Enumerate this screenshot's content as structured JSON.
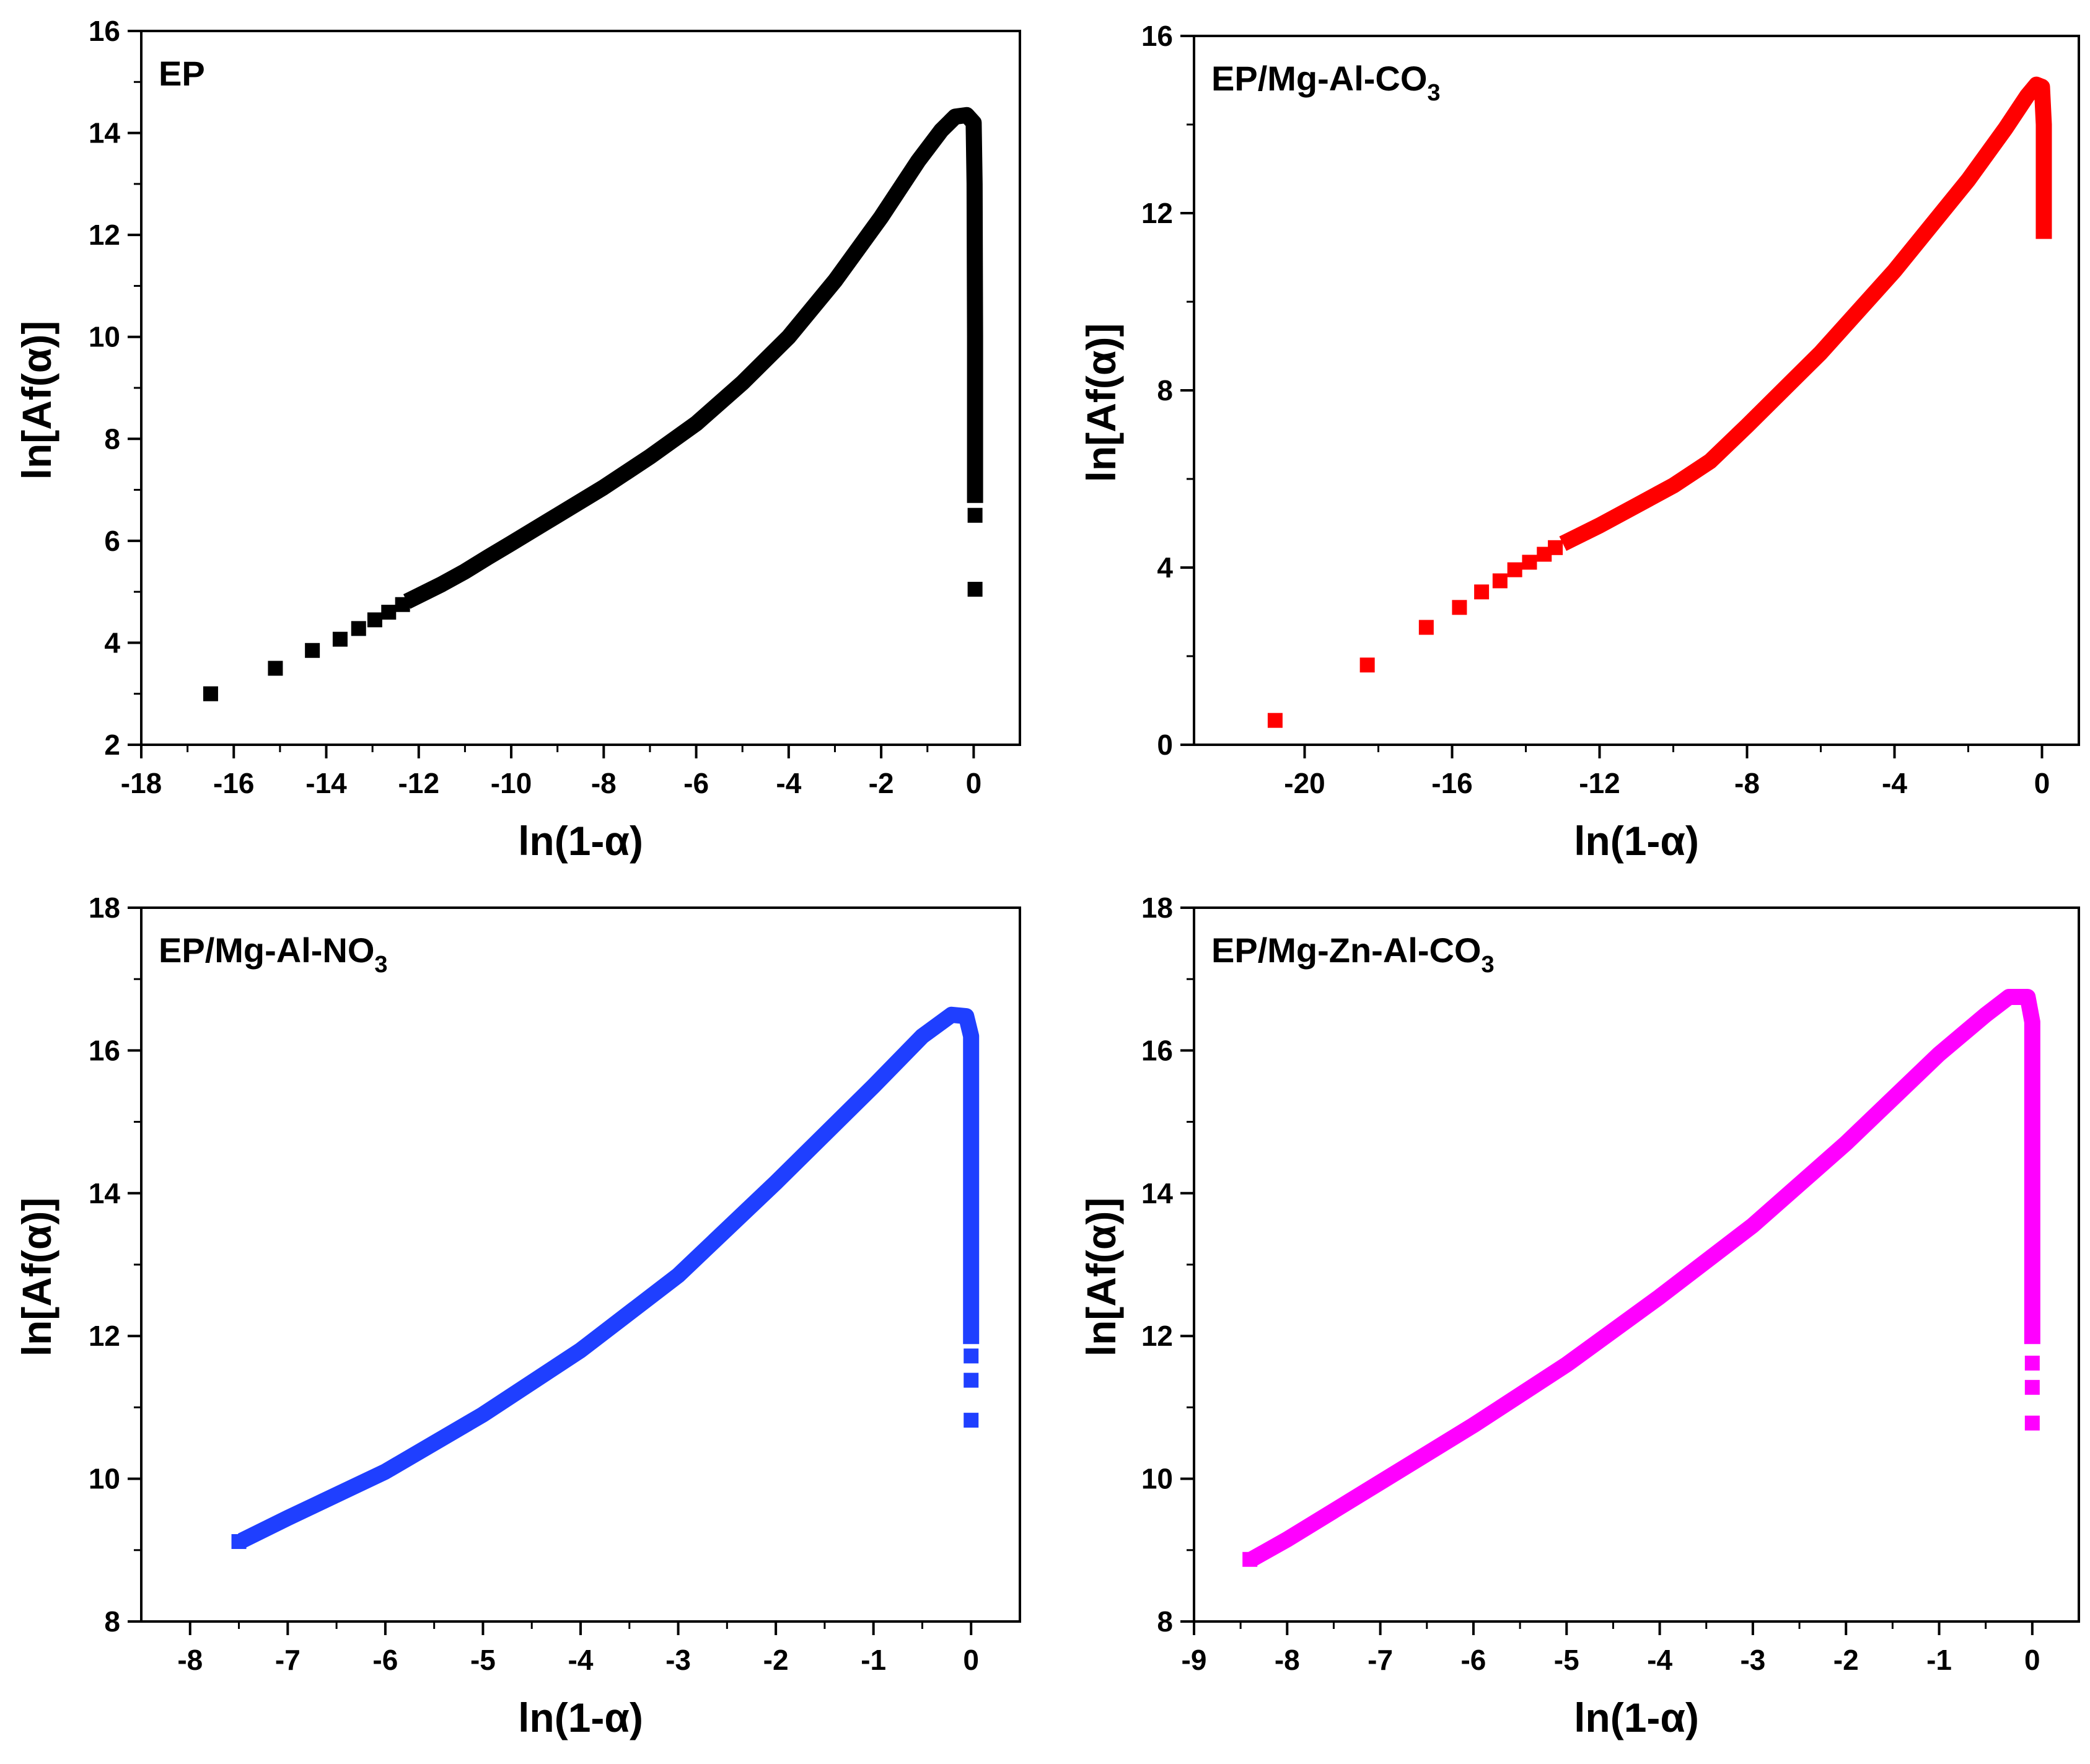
{
  "chart_data": [
    {
      "type": "scatter",
      "title": "EP",
      "title_sub": "",
      "xlabel": "ln(1-α)",
      "ylabel": "ln[Af(α)]",
      "xlim": [
        -18,
        1
      ],
      "ylim": [
        2,
        16
      ],
      "xticks": [
        -18,
        -16,
        -14,
        -12,
        -10,
        -8,
        -6,
        -4,
        -2,
        0
      ],
      "yticks": [
        2,
        4,
        6,
        8,
        10,
        12,
        14,
        16
      ],
      "color": "#000000",
      "discrete": [
        [
          -16.5,
          3.0
        ],
        [
          -15.1,
          3.5
        ],
        [
          -14.3,
          3.85
        ],
        [
          -13.7,
          4.07
        ],
        [
          -13.3,
          4.28
        ],
        [
          -12.95,
          4.45
        ],
        [
          -12.65,
          4.6
        ],
        [
          -12.35,
          4.75
        ]
      ],
      "curve": [
        [
          -12.1,
          4.88
        ],
        [
          -11.5,
          5.15
        ],
        [
          -11.0,
          5.4
        ],
        [
          -10.5,
          5.68
        ],
        [
          -10.0,
          5.95
        ],
        [
          -9.0,
          6.5
        ],
        [
          -8.0,
          7.05
        ],
        [
          -7.0,
          7.65
        ],
        [
          -6.0,
          8.3
        ],
        [
          -5.0,
          9.1
        ],
        [
          -4.0,
          10.0
        ],
        [
          -3.0,
          11.1
        ],
        [
          -2.0,
          12.35
        ],
        [
          -1.2,
          13.45
        ],
        [
          -0.7,
          14.05
        ],
        [
          -0.4,
          14.32
        ],
        [
          -0.15,
          14.35
        ],
        [
          0.0,
          14.2
        ],
        [
          0.02,
          13.0
        ],
        [
          0.03,
          10.0
        ],
        [
          0.03,
          6.9
        ]
      ],
      "tail": [
        [
          0.03,
          6.5
        ],
        [
          0.03,
          5.05
        ]
      ]
    },
    {
      "type": "scatter",
      "title": "EP/Mg-Al-CO",
      "title_sub": "3",
      "xlabel": "ln(1-α)",
      "ylabel": "ln[Af(α)]",
      "xlim": [
        -23,
        1
      ],
      "ylim": [
        0,
        16
      ],
      "xticks": [
        -20,
        -16,
        -12,
        -8,
        -4,
        0
      ],
      "yticks": [
        0,
        4,
        8,
        12,
        16
      ],
      "color": "#ff0000",
      "discrete": [
        [
          -20.8,
          0.55
        ],
        [
          -18.3,
          1.8
        ],
        [
          -16.7,
          2.65
        ],
        [
          -15.8,
          3.1
        ],
        [
          -15.2,
          3.45
        ],
        [
          -14.7,
          3.7
        ],
        [
          -14.3,
          3.95
        ],
        [
          -13.9,
          4.12
        ],
        [
          -13.5,
          4.3
        ],
        [
          -13.2,
          4.45
        ]
      ],
      "curve": [
        [
          -12.8,
          4.62
        ],
        [
          -12.0,
          4.95
        ],
        [
          -11.0,
          5.4
        ],
        [
          -10.0,
          5.85
        ],
        [
          -9.0,
          6.4
        ],
        [
          -8.0,
          7.2
        ],
        [
          -6.0,
          8.85
        ],
        [
          -4.0,
          10.7
        ],
        [
          -2.0,
          12.75
        ],
        [
          -1.0,
          13.9
        ],
        [
          -0.4,
          14.65
        ],
        [
          -0.15,
          14.9
        ],
        [
          0.0,
          14.85
        ],
        [
          0.05,
          14.0
        ],
        [
          0.05,
          12.5
        ],
        [
          0.05,
          11.6
        ]
      ],
      "tail": []
    },
    {
      "type": "scatter",
      "title": "EP/Mg-Al-NO",
      "title_sub": "3",
      "xlabel": "ln(1-α)",
      "ylabel": "ln[Af(α)]",
      "xlim": [
        -8.5,
        0.5
      ],
      "ylim": [
        8,
        18
      ],
      "xticks": [
        -8,
        -7,
        -6,
        -5,
        -4,
        -3,
        -2,
        -1,
        0
      ],
      "yticks": [
        8,
        10,
        12,
        14,
        16,
        18
      ],
      "color": "#1f3fff",
      "discrete": [
        [
          -7.5,
          9.12
        ]
      ],
      "curve": [
        [
          -7.4,
          9.18
        ],
        [
          -7.0,
          9.45
        ],
        [
          -6.0,
          10.1
        ],
        [
          -5.0,
          10.9
        ],
        [
          -4.0,
          11.8
        ],
        [
          -3.0,
          12.85
        ],
        [
          -2.0,
          14.15
        ],
        [
          -1.0,
          15.5
        ],
        [
          -0.5,
          16.2
        ],
        [
          -0.2,
          16.5
        ],
        [
          -0.05,
          16.48
        ],
        [
          0.0,
          16.2
        ],
        [
          0.0,
          14.5
        ],
        [
          0.0,
          12.0
        ]
      ],
      "tail": [
        [
          0.0,
          11.72
        ],
        [
          0.0,
          11.38
        ],
        [
          0.0,
          10.82
        ]
      ]
    },
    {
      "type": "scatter",
      "title": "EP/Mg-Zn-Al-CO",
      "title_sub": "3",
      "xlabel": "ln(1-α)",
      "ylabel": "ln[Af(α)]",
      "xlim": [
        -9,
        0.5
      ],
      "ylim": [
        8,
        18
      ],
      "xticks": [
        -9,
        -8,
        -7,
        -6,
        -5,
        -4,
        -3,
        -2,
        -1,
        0
      ],
      "yticks": [
        8,
        10,
        12,
        14,
        16,
        18
      ],
      "color": "#ff00ff",
      "discrete": [
        [
          -8.4,
          8.87
        ]
      ],
      "curve": [
        [
          -8.3,
          8.93
        ],
        [
          -8.0,
          9.15
        ],
        [
          -7.0,
          9.95
        ],
        [
          -6.0,
          10.75
        ],
        [
          -5.0,
          11.6
        ],
        [
          -4.0,
          12.55
        ],
        [
          -3.0,
          13.55
        ],
        [
          -2.0,
          14.7
        ],
        [
          -1.0,
          15.95
        ],
        [
          -0.5,
          16.5
        ],
        [
          -0.25,
          16.75
        ],
        [
          -0.05,
          16.75
        ],
        [
          0.0,
          16.4
        ],
        [
          0.0,
          14.5
        ],
        [
          0.0,
          12.0
        ]
      ],
      "tail": [
        [
          0.0,
          11.62
        ],
        [
          0.0,
          11.28
        ],
        [
          0.0,
          10.78
        ]
      ]
    }
  ]
}
